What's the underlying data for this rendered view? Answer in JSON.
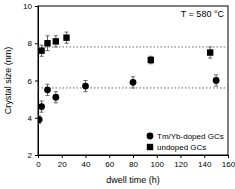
{
  "chart_data": {
    "type": "scatter",
    "x_label": "dwell time (h)",
    "y_label": "Crystal size (nm)",
    "annotation": "T = 580 °C",
    "xlim": [
      0,
      160
    ],
    "xticks": [
      0,
      20,
      40,
      60,
      80,
      100,
      120,
      140,
      160
    ],
    "ylim": [
      2,
      10
    ],
    "yticks": [
      2,
      4,
      6,
      8,
      10
    ],
    "hlines": [
      7.8,
      5.6
    ],
    "legend": "lower right",
    "series": [
      {
        "name": "Tm/Yb-doped GCs",
        "color": "#000000",
        "marker": "circle",
        "x": [
          1,
          3,
          8,
          15,
          40,
          80,
          150
        ],
        "values": [
          3.9,
          4.6,
          5.5,
          5.1,
          5.7,
          5.9,
          6.0
        ],
        "errors": [
          0.2,
          0.3,
          0.3,
          0.3,
          0.3,
          0.3,
          0.3
        ]
      },
      {
        "name": "undoped GCs",
        "color": "#000000",
        "marker": "square",
        "x": [
          3,
          8,
          15,
          24,
          95,
          145
        ],
        "values": [
          7.6,
          8.0,
          8.1,
          8.3,
          7.1,
          7.5
        ],
        "errors": [
          0.3,
          0.4,
          0.3,
          0.3,
          0.2,
          0.3
        ]
      }
    ]
  }
}
